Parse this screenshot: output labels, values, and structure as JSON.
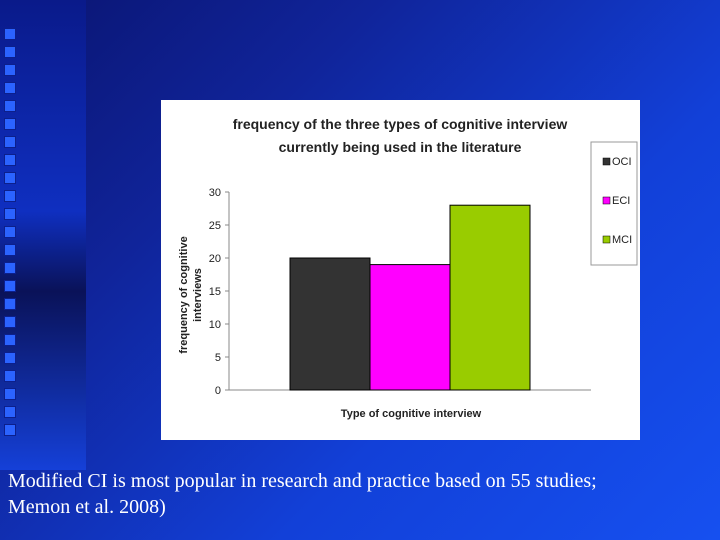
{
  "chart_data": {
    "type": "bar",
    "title_lines": [
      "frequency of the three types of cognitive interview",
      "currently being used in the literature"
    ],
    "xlabel": "Type of cognitive interview",
    "ylabel_lines": [
      "frequency of cognitive",
      "interviews"
    ],
    "ylim": [
      0,
      30
    ],
    "yticks": [
      0,
      5,
      10,
      15,
      20,
      25,
      30
    ],
    "series": [
      {
        "name": "OCI",
        "values": [
          20
        ],
        "color": "#333333"
      },
      {
        "name": "ECI",
        "values": [
          19
        ],
        "color": "#ff00ff"
      },
      {
        "name": "MCI",
        "values": [
          28
        ],
        "color": "#99cc00"
      }
    ],
    "legend": "right",
    "grid": false
  },
  "caption": {
    "line1": "Modified CI is most popular in research and practice based on 55 studies;",
    "line2": "Memon et al. 2008)"
  },
  "colors": {
    "background": "#1240d8",
    "panel": "#ffffff",
    "caption_text": "#ffffff"
  }
}
